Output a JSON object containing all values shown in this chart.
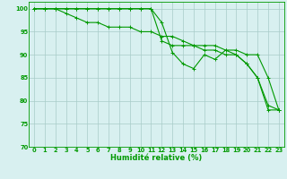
{
  "xlabel": "Humidité relative (%)",
  "background_color": "#d8f0f0",
  "grid_color": "#a8ccc8",
  "line_color": "#009900",
  "xlim": [
    -0.5,
    23.5
  ],
  "ylim": [
    70,
    101.5
  ],
  "yticks": [
    70,
    75,
    80,
    85,
    90,
    95,
    100
  ],
  "xticks": [
    0,
    1,
    2,
    3,
    4,
    5,
    6,
    7,
    8,
    9,
    10,
    11,
    12,
    13,
    14,
    15,
    16,
    17,
    18,
    19,
    20,
    21,
    22,
    23
  ],
  "series1_x": [
    0,
    1,
    2,
    3,
    4,
    5,
    6,
    7,
    8,
    9,
    10,
    11,
    12,
    13,
    14,
    15,
    16,
    17,
    18,
    19,
    20,
    21,
    22,
    23
  ],
  "series1_y": [
    100,
    100,
    100,
    100,
    100,
    100,
    100,
    100,
    100,
    100,
    100,
    100,
    97,
    90.5,
    88,
    87,
    90,
    89,
    91,
    90,
    88,
    85,
    78,
    78
  ],
  "series2_x": [
    0,
    1,
    2,
    3,
    4,
    5,
    6,
    7,
    8,
    9,
    10,
    11,
    12,
    13,
    14,
    15,
    16,
    17,
    18,
    19,
    20,
    21,
    22,
    23
  ],
  "series2_y": [
    100,
    100,
    100,
    100,
    100,
    100,
    100,
    100,
    100,
    100,
    100,
    100,
    93,
    92,
    92,
    92,
    92,
    92,
    91,
    91,
    90,
    90,
    85,
    78
  ],
  "series3_x": [
    0,
    1,
    2,
    3,
    4,
    5,
    6,
    7,
    8,
    9,
    10,
    11,
    12,
    13,
    14,
    15,
    16,
    17,
    18,
    19,
    20,
    21,
    22,
    23
  ],
  "series3_y": [
    100,
    100,
    100,
    99,
    98,
    97,
    97,
    96,
    96,
    96,
    95,
    95,
    94,
    94,
    93,
    92,
    91,
    91,
    90,
    90,
    88,
    85,
    79,
    78
  ]
}
